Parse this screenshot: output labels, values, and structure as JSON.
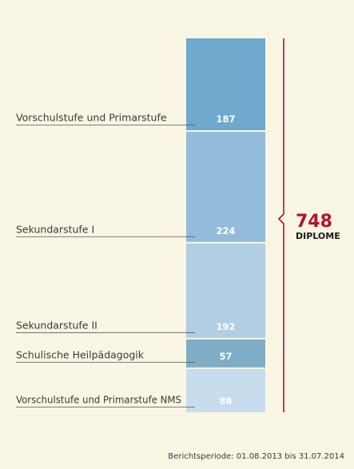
{
  "chart_data": {
    "type": "bar",
    "stacked": true,
    "orientation": "vertical",
    "categories": [
      "Vorschulstufe und Primarstufe",
      "Sekundarstufe I",
      "Sekundarstufe II",
      "Schulische Heilpädagogik",
      "Vorschulstufe und Primarstufe NMS"
    ],
    "values": [
      187,
      224,
      192,
      57,
      88
    ],
    "colors": [
      "#6fa9cd",
      "#92bcd9",
      "#b1cee3",
      "#80adc6",
      "#c7dcec"
    ],
    "total": {
      "value": "748",
      "label": "DIPLOME",
      "color": "#b3122e"
    },
    "grid": false,
    "legend": "none"
  },
  "footnote": "Berichtsperiode: 01.08.2013 bis 31.07.2014"
}
